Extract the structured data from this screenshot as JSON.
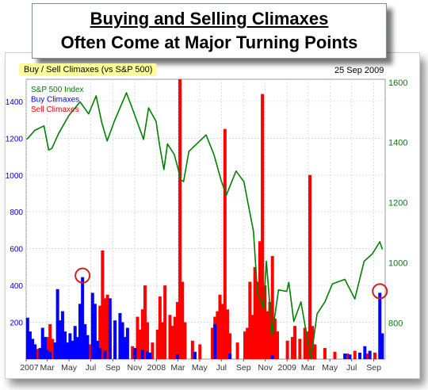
{
  "title_line1": "Buying and Selling Climaxes",
  "title_line2": "Often Come at Major Turning Points",
  "subtitle": "Buy / Sell Climaxes (vs S&P 500)",
  "date": "25 Sep 2009",
  "colors": {
    "sp500": "#008000",
    "buy": "#0000ff",
    "sell": "#ff0000",
    "marker": "#cc2222",
    "left_axis": "#0000cc",
    "right_axis": "#008000",
    "grid": "#c8c8c8",
    "tag_bg": "#ffff99"
  },
  "chart_data": {
    "type": "bar",
    "x_tick_labels": [
      "2007",
      "Mar",
      "May",
      "Jul",
      "Sep",
      "Nov",
      "2008",
      "Mar",
      "May",
      "Jul",
      "Sep",
      "Nov",
      "2009",
      "Mar",
      "May",
      "Jul",
      "Sep"
    ],
    "left_axis": {
      "ticks": [
        200,
        400,
        600,
        800,
        1000,
        1200,
        1400
      ],
      "ylim": [
        0,
        1520
      ]
    },
    "right_axis": {
      "ticks": [
        800,
        1000,
        1200,
        1400,
        1600
      ],
      "ylim": [
        680,
        1610
      ],
      "scale": "linear"
    },
    "legend": [
      "S&P 500 Index",
      "Buy Climaxes",
      "Sell Climaxes"
    ],
    "legend_position": "top-left",
    "grid": true,
    "series": [
      {
        "name": "S&P 500 Index",
        "type": "line",
        "axis": "right",
        "points": [
          [
            "2007-01-03",
            1410
          ],
          [
            "2007-01-25",
            1440
          ],
          [
            "2007-02-20",
            1455
          ],
          [
            "2007-03-05",
            1375
          ],
          [
            "2007-03-14",
            1380
          ],
          [
            "2007-04-02",
            1430
          ],
          [
            "2007-05-01",
            1490
          ],
          [
            "2007-06-01",
            1535
          ],
          [
            "2007-06-25",
            1495
          ],
          [
            "2007-07-16",
            1555
          ],
          [
            "2007-08-01",
            1465
          ],
          [
            "2007-08-16",
            1405
          ],
          [
            "2007-09-05",
            1470
          ],
          [
            "2007-10-09",
            1565
          ],
          [
            "2007-10-25",
            1515
          ],
          [
            "2007-11-26",
            1410
          ],
          [
            "2007-12-10",
            1515
          ],
          [
            "2007-12-31",
            1470
          ],
          [
            "2008-01-10",
            1390
          ],
          [
            "2008-01-22",
            1310
          ],
          [
            "2008-02-01",
            1395
          ],
          [
            "2008-02-20",
            1360
          ],
          [
            "2008-03-10",
            1275
          ],
          [
            "2008-03-17",
            1270
          ],
          [
            "2008-04-01",
            1370
          ],
          [
            "2008-05-19",
            1425
          ],
          [
            "2008-06-10",
            1360
          ],
          [
            "2008-06-30",
            1275
          ],
          [
            "2008-07-15",
            1225
          ],
          [
            "2008-08-11",
            1305
          ],
          [
            "2008-09-02",
            1270
          ],
          [
            "2008-09-15",
            1190
          ],
          [
            "2008-09-29",
            1105
          ],
          [
            "2008-10-10",
            900
          ],
          [
            "2008-10-27",
            850
          ],
          [
            "2008-11-04",
            1005
          ],
          [
            "2008-11-20",
            760
          ],
          [
            "2008-12-08",
            910
          ],
          [
            "2008-12-31",
            905
          ],
          [
            "2009-01-06",
            935
          ],
          [
            "2009-01-20",
            805
          ],
          [
            "2009-02-09",
            870
          ],
          [
            "2009-03-09",
            680
          ],
          [
            "2009-03-26",
            830
          ],
          [
            "2009-04-17",
            870
          ],
          [
            "2009-05-08",
            930
          ],
          [
            "2009-06-12",
            945
          ],
          [
            "2009-07-10",
            880
          ],
          [
            "2009-08-05",
            1005
          ],
          [
            "2009-08-28",
            1030
          ],
          [
            "2009-09-18",
            1070
          ],
          [
            "2009-09-25",
            1045
          ]
        ]
      },
      {
        "name": "Buy Climaxes",
        "type": "bar",
        "axis": "left",
        "points": [
          [
            "2007-01-05",
            225
          ],
          [
            "2007-01-12",
            150
          ],
          [
            "2007-01-19",
            110
          ],
          [
            "2007-01-26",
            80
          ],
          [
            "2007-02-09",
            60
          ],
          [
            "2007-02-16",
            170
          ],
          [
            "2007-02-23",
            120
          ],
          [
            "2007-03-02",
            50
          ],
          [
            "2007-03-09",
            40
          ],
          [
            "2007-03-23",
            90
          ],
          [
            "2007-03-30",
            380
          ],
          [
            "2007-04-06",
            210
          ],
          [
            "2007-04-13",
            260
          ],
          [
            "2007-04-20",
            150
          ],
          [
            "2007-04-27",
            90
          ],
          [
            "2007-05-04",
            140
          ],
          [
            "2007-05-11",
            100
          ],
          [
            "2007-05-18",
            180
          ],
          [
            "2007-05-25",
            120
          ],
          [
            "2007-06-01",
            300
          ],
          [
            "2007-06-08",
            445
          ],
          [
            "2007-06-15",
            190
          ],
          [
            "2007-06-22",
            130
          ],
          [
            "2007-07-06",
            360
          ],
          [
            "2007-07-13",
            300
          ],
          [
            "2007-07-20",
            100
          ],
          [
            "2007-07-27",
            60
          ],
          [
            "2007-08-10",
            45
          ],
          [
            "2007-08-24",
            330
          ],
          [
            "2007-09-07",
            210
          ],
          [
            "2007-09-21",
            250
          ],
          [
            "2007-09-28",
            200
          ],
          [
            "2007-10-05",
            120
          ],
          [
            "2007-10-12",
            170
          ],
          [
            "2007-11-02",
            60
          ],
          [
            "2007-11-23",
            50
          ],
          [
            "2007-12-07",
            40
          ],
          [
            "2007-12-14",
            35
          ],
          [
            "2008-02-29",
            25
          ],
          [
            "2008-04-18",
            40
          ],
          [
            "2008-06-13",
            190
          ],
          [
            "2008-07-25",
            30
          ],
          [
            "2008-11-21",
            20
          ],
          [
            "2009-06-12",
            30
          ],
          [
            "2009-06-26",
            25
          ],
          [
            "2009-07-24",
            35
          ],
          [
            "2009-08-07",
            70
          ],
          [
            "2009-08-21",
            45
          ],
          [
            "2009-09-18",
            360
          ],
          [
            "2009-09-25",
            140
          ]
        ]
      },
      {
        "name": "Sell Climaxes",
        "type": "bar",
        "axis": "left",
        "points": [
          [
            "2007-01-05",
            40
          ],
          [
            "2007-01-19",
            60
          ],
          [
            "2007-02-02",
            55
          ],
          [
            "2007-03-02",
            120
          ],
          [
            "2007-03-09",
            190
          ],
          [
            "2007-03-16",
            110
          ],
          [
            "2007-04-13",
            70
          ],
          [
            "2007-05-04",
            50
          ],
          [
            "2007-06-01",
            60
          ],
          [
            "2007-06-29",
            80
          ],
          [
            "2007-07-27",
            290
          ],
          [
            "2007-08-03",
            590
          ],
          [
            "2007-08-10",
            330
          ],
          [
            "2007-08-17",
            350
          ],
          [
            "2007-08-24",
            150
          ],
          [
            "2007-09-07",
            80
          ],
          [
            "2007-09-28",
            55
          ],
          [
            "2007-10-26",
            70
          ],
          [
            "2007-11-09",
            230
          ],
          [
            "2007-11-16",
            160
          ],
          [
            "2007-11-23",
            270
          ],
          [
            "2007-11-30",
            400
          ],
          [
            "2007-12-07",
            200
          ],
          [
            "2007-12-21",
            90
          ],
          [
            "2008-01-04",
            160
          ],
          [
            "2008-01-11",
            340
          ],
          [
            "2008-01-18",
            200
          ],
          [
            "2008-01-25",
            400
          ],
          [
            "2008-02-08",
            240
          ],
          [
            "2008-02-15",
            180
          ],
          [
            "2008-02-22",
            230
          ],
          [
            "2008-02-29",
            310
          ],
          [
            "2008-03-07",
            1520
          ],
          [
            "2008-03-14",
            420
          ],
          [
            "2008-03-21",
            200
          ],
          [
            "2008-04-11",
            100
          ],
          [
            "2008-05-02",
            80
          ],
          [
            "2008-06-06",
            170
          ],
          [
            "2008-06-13",
            230
          ],
          [
            "2008-06-20",
            260
          ],
          [
            "2008-06-27",
            350
          ],
          [
            "2008-07-03",
            300
          ],
          [
            "2008-07-11",
            1250
          ],
          [
            "2008-07-18",
            270
          ],
          [
            "2008-07-25",
            140
          ],
          [
            "2008-08-15",
            90
          ],
          [
            "2008-09-05",
            150
          ],
          [
            "2008-09-12",
            170
          ],
          [
            "2008-09-19",
            420
          ],
          [
            "2008-09-26",
            240
          ],
          [
            "2008-10-03",
            500
          ],
          [
            "2008-10-10",
            420
          ],
          [
            "2008-10-17",
            640
          ],
          [
            "2008-10-24",
            1440
          ],
          [
            "2008-10-31",
            400
          ],
          [
            "2008-11-07",
            260
          ],
          [
            "2008-11-14",
            310
          ],
          [
            "2008-11-21",
            560
          ],
          [
            "2008-11-28",
            220
          ],
          [
            "2008-12-05",
            150
          ],
          [
            "2009-01-02",
            100
          ],
          [
            "2009-01-16",
            120
          ],
          [
            "2009-01-23",
            180
          ],
          [
            "2009-02-06",
            110
          ],
          [
            "2009-02-20",
            170
          ],
          [
            "2009-02-27",
            150
          ],
          [
            "2009-03-06",
            1000
          ],
          [
            "2009-03-13",
            180
          ],
          [
            "2009-03-20",
            80
          ],
          [
            "2009-04-17",
            60
          ],
          [
            "2009-05-15",
            40
          ],
          [
            "2009-06-19",
            30
          ],
          [
            "2009-07-10",
            45
          ],
          [
            "2009-08-14",
            30
          ],
          [
            "2009-09-04",
            35
          ]
        ]
      }
    ],
    "circled_points": [
      [
        "2007-06-08",
        445
      ],
      [
        "2009-09-18",
        360
      ]
    ]
  }
}
